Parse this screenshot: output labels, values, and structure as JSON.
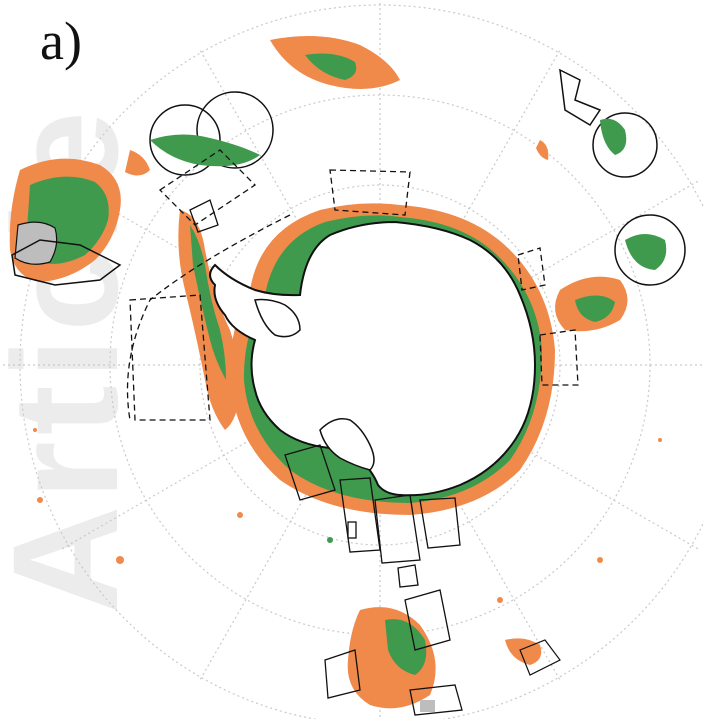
{
  "panel_label": "a)",
  "watermark": "Article",
  "colors": {
    "orange": "#f08a4b",
    "green": "#3f9a4d",
    "grid": "#c9c9c9",
    "coast": "#111111",
    "ice_fill": "#ffffff",
    "gray_patch": "#bdbdbd"
  },
  "legend": []
}
